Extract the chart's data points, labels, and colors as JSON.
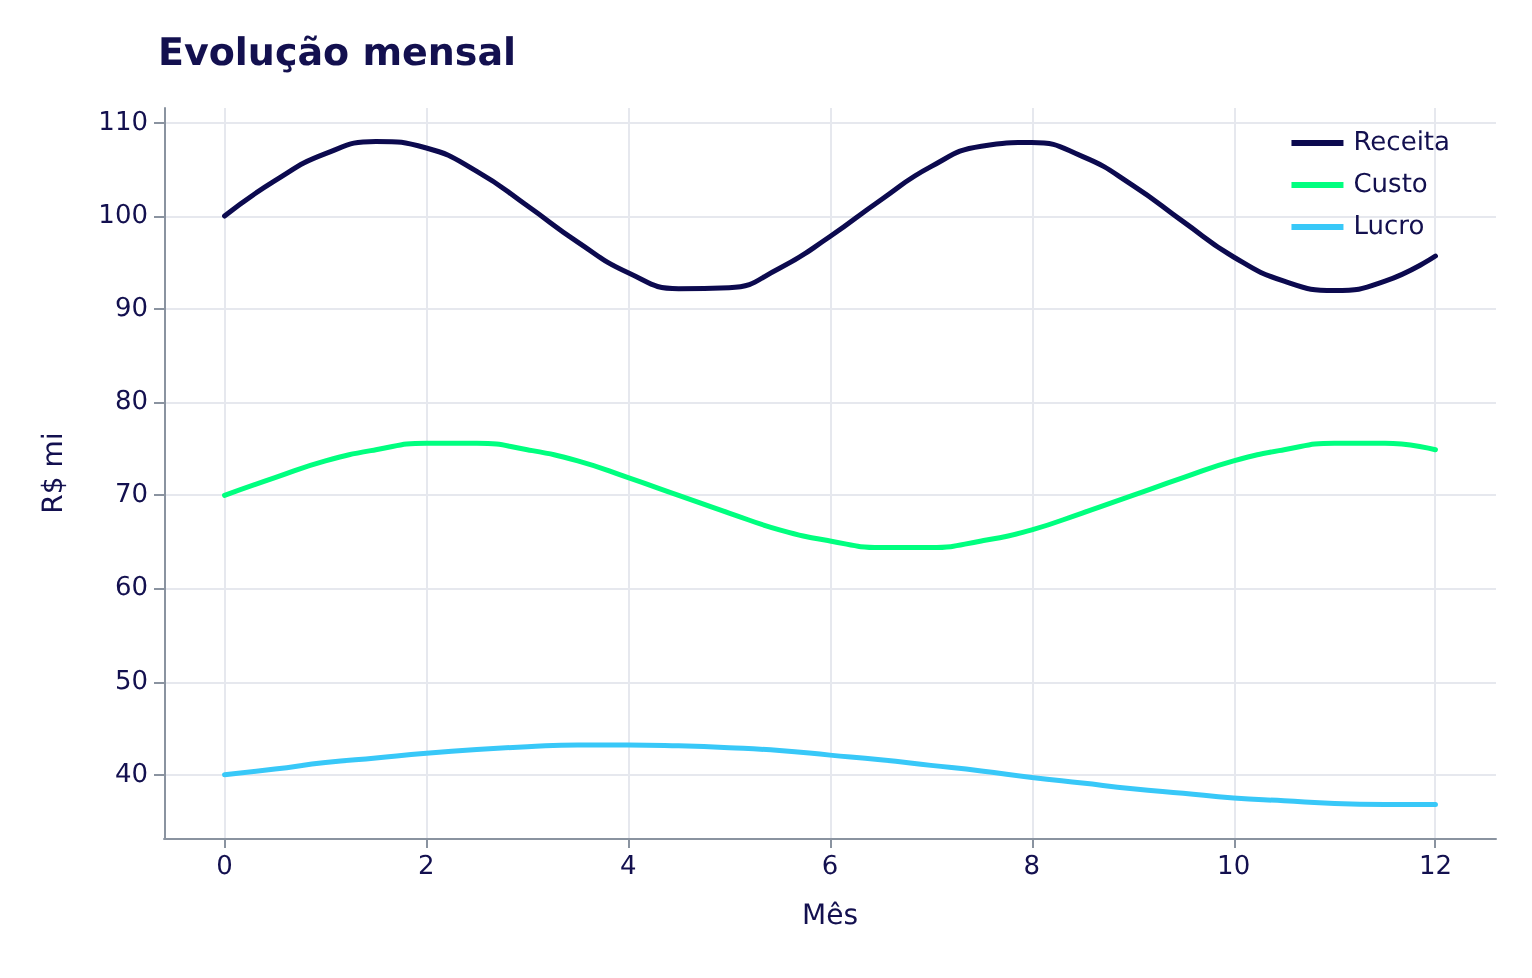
{
  "chart_data": {
    "type": "line",
    "title": "Evolução mensal",
    "xlabel": "Mês",
    "ylabel": "R$ mi",
    "x": [
      0,
      0.5,
      1,
      1.5,
      2,
      2.5,
      3,
      3.5,
      4,
      4.5,
      5,
      5.5,
      6,
      6.5,
      7,
      7.5,
      8,
      8.5,
      9,
      9.5,
      10,
      10.5,
      11,
      11.5,
      12
    ],
    "series": [
      {
        "name": "Receita",
        "color": "#0c0a4f",
        "values": [
          100,
          103.8,
          106.7,
          108.0,
          107.3,
          104.8,
          101.1,
          97.2,
          93.9,
          92.2,
          92.3,
          94.4,
          97.8,
          101.7,
          105.3,
          107.5,
          107.9,
          106.4,
          103.3,
          99.4,
          95.6,
          93.0,
          92.0,
          93.0,
          95.7
        ]
      },
      {
        "name": "Custo",
        "color": "#00ff7f",
        "values": [
          70,
          71.9,
          73.7,
          74.9,
          75.6,
          75.6,
          74.9,
          73.7,
          71.9,
          70.0,
          68.1,
          66.3,
          65.1,
          64.4,
          64.4,
          65.1,
          66.3,
          68.1,
          70.0,
          71.9,
          73.7,
          74.9,
          75.6,
          75.6,
          74.9
        ]
      },
      {
        "name": "Lucro",
        "color": "#38c8f8",
        "values": [
          40,
          40.6,
          41.3,
          41.8,
          42.3,
          42.7,
          43.0,
          43.2,
          43.2,
          43.1,
          42.9,
          42.6,
          42.1,
          41.6,
          41.0,
          40.4,
          39.7,
          39.1,
          38.5,
          38.0,
          37.5,
          37.2,
          36.9,
          36.8,
          36.8
        ]
      }
    ],
    "xlim": [
      -0.6,
      12.6
    ],
    "xticks": [
      0,
      2,
      4,
      6,
      8,
      10,
      12
    ],
    "ylim": [
      33.2,
      111.6
    ],
    "yticks": [
      40,
      50,
      60,
      70,
      80,
      90,
      100,
      110
    ],
    "grid": true,
    "legend": "top right",
    "marker": "none",
    "line_style": "solid"
  }
}
